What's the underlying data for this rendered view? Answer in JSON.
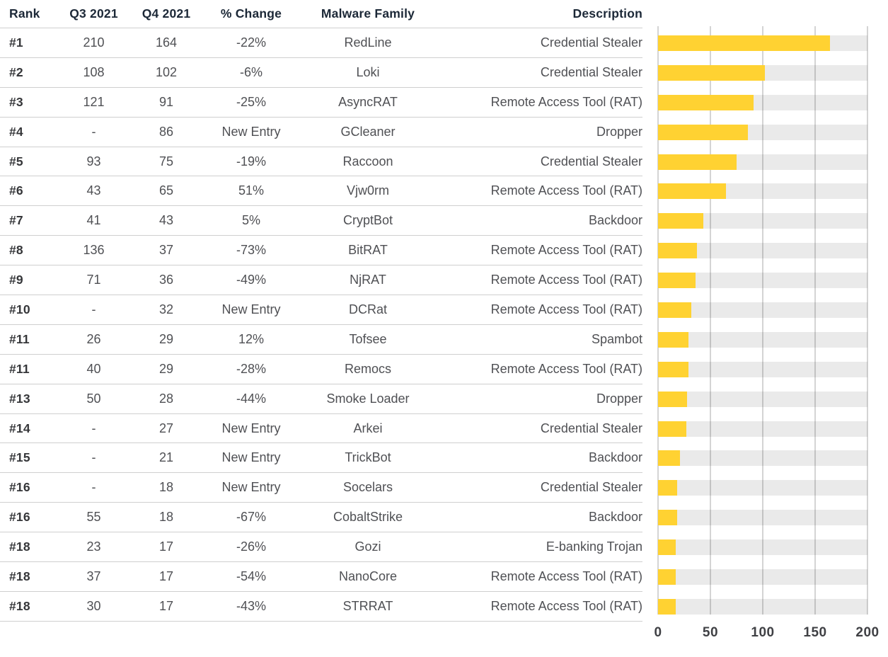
{
  "table": {
    "columns": [
      "Rank",
      "Q3 2021",
      "Q4 2021",
      "% Change",
      "Malware Family",
      "Description"
    ],
    "rows": [
      {
        "rank": "#1",
        "q3": "210",
        "q4": "164",
        "change": "-22%",
        "family": "RedLine",
        "description": "Credential Stealer"
      },
      {
        "rank": "#2",
        "q3": "108",
        "q4": "102",
        "change": "-6%",
        "family": "Loki",
        "description": "Credential Stealer"
      },
      {
        "rank": "#3",
        "q3": "121",
        "q4": "91",
        "change": "-25%",
        "family": "AsyncRAT",
        "description": "Remote Access Tool (RAT)"
      },
      {
        "rank": "#4",
        "q3": "-",
        "q4": "86",
        "change": "New Entry",
        "family": "GCleaner",
        "description": "Dropper"
      },
      {
        "rank": "#5",
        "q3": "93",
        "q4": "75",
        "change": "-19%",
        "family": "Raccoon",
        "description": "Credential Stealer"
      },
      {
        "rank": "#6",
        "q3": "43",
        "q4": "65",
        "change": "51%",
        "family": "Vjw0rm",
        "description": "Remote Access Tool (RAT)"
      },
      {
        "rank": "#7",
        "q3": "41",
        "q4": "43",
        "change": "5%",
        "family": "CryptBot",
        "description": "Backdoor"
      },
      {
        "rank": "#8",
        "q3": "136",
        "q4": "37",
        "change": "-73%",
        "family": "BitRAT",
        "description": "Remote Access Tool (RAT)"
      },
      {
        "rank": "#9",
        "q3": "71",
        "q4": "36",
        "change": "-49%",
        "family": "NjRAT",
        "description": "Remote Access Tool (RAT)"
      },
      {
        "rank": "#10",
        "q3": "-",
        "q4": "32",
        "change": "New Entry",
        "family": "DCRat",
        "description": "Remote Access Tool (RAT)"
      },
      {
        "rank": "#11",
        "q3": "26",
        "q4": "29",
        "change": "12%",
        "family": "Tofsee",
        "description": "Spambot"
      },
      {
        "rank": "#11",
        "q3": "40",
        "q4": "29",
        "change": "-28%",
        "family": "Remocs",
        "description": "Remote Access Tool (RAT)"
      },
      {
        "rank": "#13",
        "q3": "50",
        "q4": "28",
        "change": "-44%",
        "family": "Smoke Loader",
        "description": "Dropper"
      },
      {
        "rank": "#14",
        "q3": "-",
        "q4": "27",
        "change": "New Entry",
        "family": "Arkei",
        "description": "Credential Stealer"
      },
      {
        "rank": "#15",
        "q3": "-",
        "q4": "21",
        "change": "New Entry",
        "family": "TrickBot",
        "description": "Backdoor"
      },
      {
        "rank": "#16",
        "q3": "-",
        "q4": "18",
        "change": "New Entry",
        "family": "Socelars",
        "description": "Credential Stealer"
      },
      {
        "rank": "#16",
        "q3": "55",
        "q4": "18",
        "change": "-67%",
        "family": "CobaltStrike",
        "description": "Backdoor"
      },
      {
        "rank": "#18",
        "q3": "23",
        "q4": "17",
        "change": "-26%",
        "family": "Gozi",
        "description": "E-banking Trojan"
      },
      {
        "rank": "#18",
        "q3": "37",
        "q4": "17",
        "change": "-54%",
        "family": "NanoCore",
        "description": "Remote Access Tool (RAT)"
      },
      {
        "rank": "#18",
        "q3": "30",
        "q4": "17",
        "change": "-43%",
        "family": "STRRAT",
        "description": "Remote Access Tool (RAT)"
      }
    ]
  },
  "chart_data": {
    "type": "bar",
    "orientation": "horizontal",
    "title": "",
    "xlabel": "",
    "ylabel": "",
    "categories": [
      "RedLine",
      "Loki",
      "AsyncRAT",
      "GCleaner",
      "Raccoon",
      "Vjw0rm",
      "CryptBot",
      "BitRAT",
      "NjRAT",
      "DCRat",
      "Tofsee",
      "Remocs",
      "Smoke Loader",
      "Arkei",
      "TrickBot",
      "Socelars",
      "CobaltStrike",
      "Gozi",
      "NanoCore",
      "STRRAT"
    ],
    "values": [
      164,
      102,
      91,
      86,
      75,
      65,
      43,
      37,
      36,
      32,
      29,
      29,
      28,
      27,
      21,
      18,
      18,
      17,
      17,
      17
    ],
    "xlim": [
      0,
      200
    ],
    "ticks": [
      0,
      50,
      100,
      150,
      200
    ],
    "grid": "vertical-gridlines",
    "legend": "none",
    "track_full_width": 200
  },
  "colors": {
    "bar": "#FFD232",
    "track": "#EBEBEB",
    "gridline": "#D4D4D4",
    "divider": "#CFCFCF",
    "header_text": "#1C2837",
    "cell_text": "#4F5054",
    "rank_text": "#353639",
    "axis_text": "#3F4044"
  }
}
